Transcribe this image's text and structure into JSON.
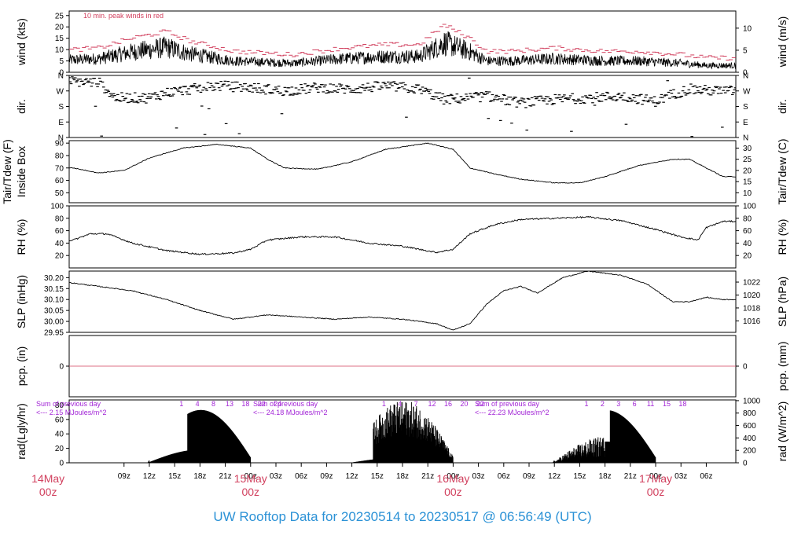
{
  "chart_data": {
    "type": "line",
    "title": "UW Rooftop Data for 20230514  to  20230517 @ 06:56:49  (UTC)",
    "x_ticks": [
      "09z",
      "12z",
      "15z",
      "18z",
      "21z",
      "00z",
      "03z",
      "06z",
      "09z",
      "12z",
      "15z",
      "18z",
      "21z",
      "00z",
      "03z",
      "06z",
      "09z",
      "12z",
      "15z",
      "18z",
      "21z",
      "00z",
      "03z",
      "06z"
    ],
    "date_labels": [
      {
        "day": "15May",
        "hour": "00z"
      },
      {
        "day": "16May",
        "hour": "00z"
      },
      {
        "day": "17May",
        "hour": "00z"
      },
      {
        "day": "14May",
        "hour": "00z"
      }
    ],
    "panels": [
      {
        "id": "wind",
        "left_label": "wind (kts)",
        "right_label": "wind (m/s)",
        "left_ticks": [
          "0",
          "5",
          "10",
          "15",
          "20",
          "25"
        ],
        "right_ticks": [
          "0",
          "5",
          "10"
        ],
        "annotation": "10 min. peak winds in red",
        "series": [
          {
            "name": "wind speed",
            "color": "#000000"
          },
          {
            "name": "10 min. peak winds",
            "color": "#d1405e"
          }
        ],
        "ylim": [
          0,
          27
        ],
        "wind_keypoints": [
          [
            0,
            5
          ],
          [
            6,
            6
          ],
          [
            10,
            9
          ],
          [
            14,
            11
          ],
          [
            17,
            8
          ],
          [
            22,
            5
          ],
          [
            29,
            4
          ],
          [
            35,
            6
          ],
          [
            40,
            7
          ],
          [
            44,
            7
          ],
          [
            47,
            13
          ],
          [
            50,
            9
          ],
          [
            52,
            5
          ],
          [
            55,
            5
          ],
          [
            60,
            6
          ],
          [
            66,
            5
          ],
          [
            70,
            5
          ],
          [
            75,
            4
          ],
          [
            78,
            3
          ]
        ]
      },
      {
        "id": "dir",
        "left_label": "dir.",
        "right_label": "dir.",
        "left_ticks": [
          "N",
          "E",
          "S",
          "W",
          "N"
        ],
        "right_ticks": [
          "N",
          "E",
          "S",
          "W",
          "N"
        ],
        "ylim": [
          0,
          360
        ],
        "dir_keypoints": [
          [
            0,
            330
          ],
          [
            6,
            320
          ],
          [
            8,
            230
          ],
          [
            12,
            230
          ],
          [
            14,
            260
          ],
          [
            20,
            300
          ],
          [
            24,
            290
          ],
          [
            28,
            270
          ],
          [
            32,
            290
          ],
          [
            36,
            280
          ],
          [
            40,
            300
          ],
          [
            44,
            280
          ],
          [
            47,
            220
          ],
          [
            50,
            230
          ],
          [
            52,
            240
          ],
          [
            56,
            200
          ],
          [
            60,
            220
          ],
          [
            64,
            230
          ],
          [
            68,
            240
          ],
          [
            72,
            210
          ],
          [
            74,
            250
          ],
          [
            76,
            280
          ],
          [
            79,
            270
          ]
        ]
      },
      {
        "id": "temp",
        "left_label": "Inside Box",
        "left_label2": "Tair/Tdew (F)",
        "right_label": "Tair/Tdew (C)",
        "left_ticks": [
          "50",
          "60",
          "70",
          "80",
          "90"
        ],
        "right_ticks": [
          "10",
          "15",
          "20",
          "25",
          "30"
        ],
        "ylim": [
          42,
          92
        ],
        "keypoints": [
          [
            0,
            71
          ],
          [
            3,
            70
          ],
          [
            6,
            66
          ],
          [
            9,
            68
          ],
          [
            12,
            78
          ],
          [
            16,
            86
          ],
          [
            20,
            89
          ],
          [
            24,
            86
          ],
          [
            26,
            77
          ],
          [
            28,
            70
          ],
          [
            32,
            69
          ],
          [
            36,
            75
          ],
          [
            40,
            85
          ],
          [
            45,
            90
          ],
          [
            48,
            85
          ],
          [
            50,
            70
          ],
          [
            53,
            65
          ],
          [
            56,
            61
          ],
          [
            60,
            58
          ],
          [
            63,
            58
          ],
          [
            66,
            63
          ],
          [
            70,
            72
          ],
          [
            74,
            77
          ],
          [
            76,
            77
          ],
          [
            78,
            70
          ],
          [
            80,
            63
          ]
        ]
      },
      {
        "id": "rh",
        "left_label": "RH (%)",
        "right_label": "RH (%)",
        "left_ticks": [
          "20",
          "40",
          "60",
          "80",
          "100"
        ],
        "right_ticks": [
          "20",
          "40",
          "60",
          "80",
          "100"
        ],
        "ylim": [
          0,
          100
        ],
        "keypoints": [
          [
            0,
            40
          ],
          [
            3,
            45
          ],
          [
            5,
            55
          ],
          [
            7,
            55
          ],
          [
            10,
            40
          ],
          [
            14,
            28
          ],
          [
            18,
            22
          ],
          [
            22,
            24
          ],
          [
            24,
            30
          ],
          [
            26,
            45
          ],
          [
            30,
            50
          ],
          [
            34,
            50
          ],
          [
            38,
            40
          ],
          [
            42,
            35
          ],
          [
            46,
            25
          ],
          [
            48,
            30
          ],
          [
            50,
            55
          ],
          [
            53,
            70
          ],
          [
            56,
            78
          ],
          [
            60,
            80
          ],
          [
            64,
            82
          ],
          [
            68,
            76
          ],
          [
            72,
            62
          ],
          [
            75,
            50
          ],
          [
            77,
            45
          ],
          [
            78,
            65
          ],
          [
            80,
            75
          ]
        ]
      },
      {
        "id": "slp",
        "left_label": "SLP (inHg)",
        "right_label": "SLP (hPa)",
        "left_ticks": [
          "29.95",
          "30.00",
          "30.05",
          "30.10",
          "30.15",
          "30.20"
        ],
        "right_ticks": [
          "1016",
          "1018",
          "1020",
          "1022"
        ],
        "ylim": [
          29.95,
          30.23
        ],
        "keypoints": [
          [
            0,
            30.19
          ],
          [
            5,
            30.165
          ],
          [
            10,
            30.14
          ],
          [
            14,
            30.1
          ],
          [
            18,
            30.05
          ],
          [
            22,
            30.01
          ],
          [
            26,
            30.03
          ],
          [
            30,
            30.02
          ],
          [
            34,
            30.01
          ],
          [
            38,
            30.02
          ],
          [
            42,
            30.01
          ],
          [
            46,
            29.99
          ],
          [
            48,
            29.96
          ],
          [
            50,
            29.99
          ],
          [
            52,
            30.08
          ],
          [
            54,
            30.14
          ],
          [
            56,
            30.16
          ],
          [
            58,
            30.13
          ],
          [
            61,
            30.2
          ],
          [
            64,
            30.23
          ],
          [
            68,
            30.21
          ],
          [
            71,
            30.17
          ],
          [
            74,
            30.09
          ],
          [
            76,
            30.09
          ],
          [
            78,
            30.11
          ],
          [
            80,
            30.1
          ]
        ]
      },
      {
        "id": "pcp",
        "left_label": "pcp. (in)",
        "right_label": "pcp. (mm)",
        "left_ticks": [
          "0"
        ],
        "right_ticks": [
          "0"
        ],
        "ylim": [
          -0.1,
          0.1
        ]
      },
      {
        "id": "rad",
        "left_label": "rad(Lgly/hr)",
        "right_label": "rad (W/m^2)",
        "left_ticks": [
          "0",
          "20",
          "40",
          "60",
          "80"
        ],
        "right_ticks": [
          "0",
          "200",
          "400",
          "600",
          "800",
          "1000"
        ],
        "ylim": [
          0,
          87
        ],
        "hour_numbers": [
          [
            "1",
            "4",
            "8",
            "13",
            "18",
            "22",
            "24"
          ],
          [
            "1",
            "4",
            "7",
            "12",
            "16",
            "20",
            "22"
          ],
          [
            "1",
            "2",
            "3",
            "6",
            "11",
            "15",
            "18"
          ]
        ],
        "sums": [
          {
            "line1": "Sum of previous day",
            "line2": "<--- 2.15 MJoules/m^2"
          },
          {
            "line1": "Sum of previous day",
            "line2": "<--- 24.18 MJoules/m^2"
          },
          {
            "line1": "Sum of previous day",
            "line2": "<--- 22.23 MJoules/m^2"
          }
        ]
      }
    ],
    "colors": {
      "ink": "#000000",
      "peak": "#d1405e",
      "date": "#d1405e",
      "title": "#2c92d6",
      "sum": "#a224d6"
    }
  }
}
